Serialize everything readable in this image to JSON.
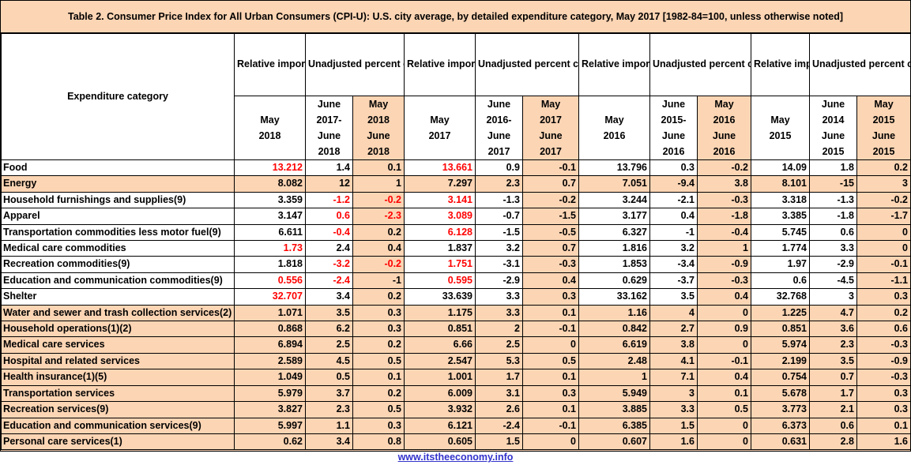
{
  "title": "Table 2. Consumer Price Index for All Urban Consumers (CPI-U): U.S. city average, by detailed expenditure category,  May 2017 [1982-84=100, unless otherwise noted]",
  "header": {
    "category": "Expenditure category",
    "relative_importance": "Relative importance",
    "unadjusted_change": "Unadjusted percent change",
    "groups": [
      {
        "ri_date": [
          "May",
          "2018"
        ],
        "c1": [
          "June",
          "2017-",
          "June",
          "2018"
        ],
        "c2": [
          "May",
          "2018",
          "June",
          "2018"
        ]
      },
      {
        "ri_date": [
          "May",
          "2017"
        ],
        "c1": [
          "June",
          "2016-",
          "June",
          "2017"
        ],
        "c2": [
          "May",
          "2017",
          "June",
          "2017"
        ]
      },
      {
        "ri_date": [
          "May",
          "2016"
        ],
        "c1": [
          "June",
          "2015-",
          "June",
          "2016"
        ],
        "c2": [
          "May",
          "2016",
          "June",
          "2016"
        ]
      },
      {
        "ri_date": [
          "May",
          "2015"
        ],
        "c1": [
          "June",
          "2014",
          "June",
          "2015"
        ],
        "c2": [
          "May",
          "2015",
          "June",
          "2015"
        ]
      }
    ]
  },
  "rows": [
    {
      "category": "Food",
      "style": "white",
      "values": [
        "13.212",
        "1.4",
        "0.1",
        "13.661",
        "0.9",
        "-0.1",
        "13.796",
        "0.3",
        "-0.2",
        "14.09",
        "1.8",
        "0.2"
      ],
      "red": [
        0,
        3
      ]
    },
    {
      "category": "Energy",
      "style": "tan",
      "values": [
        "8.082",
        "12",
        "1",
        "7.297",
        "2.3",
        "0.7",
        "7.051",
        "-9.4",
        "3.8",
        "8.101",
        "-15",
        "3"
      ],
      "red": []
    },
    {
      "category": "Household furnishings and supplies(9)",
      "style": "white",
      "values": [
        "3.359",
        "-1.2",
        "-0.2",
        "3.141",
        "-1.3",
        "-0.2",
        "3.244",
        "-2.1",
        "-0.3",
        "3.318",
        "-1.3",
        "-0.2"
      ],
      "red": [
        1,
        2,
        3
      ]
    },
    {
      "category": "Apparel",
      "style": "white",
      "values": [
        "3.147",
        "0.6",
        "-2.3",
        "3.089",
        "-0.7",
        "-1.5",
        "3.177",
        "0.4",
        "-1.8",
        "3.385",
        "-1.8",
        "-1.7"
      ],
      "red": [
        1,
        2,
        3
      ]
    },
    {
      "category": "Transportation commodities less motor fuel(9)",
      "style": "white",
      "values": [
        "6.611",
        "-0.4",
        "0.2",
        "6.128",
        "-1.5",
        "-0.5",
        "6.327",
        "-1",
        "-0.4",
        "5.745",
        "0.6",
        "0"
      ],
      "red": [
        1,
        3
      ]
    },
    {
      "category": "Medical care commodities",
      "style": "white",
      "values": [
        "1.73",
        "2.4",
        "0.4",
        "1.837",
        "3.2",
        "0.7",
        "1.816",
        "3.2",
        "1",
        "1.774",
        "3.3",
        "0"
      ],
      "red": [
        0
      ]
    },
    {
      "category": "Recreation commodities(9)",
      "style": "white",
      "values": [
        "1.818",
        "-3.2",
        "-0.2",
        "1.751",
        "-3.1",
        "-0.3",
        "1.853",
        "-3.4",
        "-0.9",
        "1.97",
        "-2.9",
        "-0.1"
      ],
      "red": [
        1,
        2,
        3
      ]
    },
    {
      "category": "Education and communication commodities(9)",
      "style": "white",
      "values": [
        "0.556",
        "-2.4",
        "-1",
        "0.595",
        "-2.9",
        "0.4",
        "0.629",
        "-3.7",
        "-0.3",
        "0.6",
        "-4.5",
        "-1.1"
      ],
      "red": [
        0,
        1,
        3
      ]
    },
    {
      "category": "Shelter",
      "style": "white",
      "values": [
        "32.707",
        "3.4",
        "0.2",
        "33.639",
        "3.3",
        "0.3",
        "33.162",
        "3.5",
        "0.4",
        "32.768",
        "3",
        "0.3"
      ],
      "red": [
        0
      ]
    },
    {
      "category": "Water and sewer and trash collection services(2)",
      "style": "tan",
      "values": [
        "1.071",
        "3.5",
        "0.3",
        "1.175",
        "3.3",
        "0.1",
        "1.16",
        "4",
        "0",
        "1.225",
        "4.7",
        "0.2"
      ],
      "red": []
    },
    {
      "category": "Household operations(1)(2)",
      "style": "tan",
      "values": [
        "0.868",
        "6.2",
        "0.3",
        "0.851",
        "2",
        "-0.1",
        "0.842",
        "2.7",
        "0.9",
        "0.851",
        "3.6",
        "0.6"
      ],
      "red": []
    },
    {
      "category": "Medical care services",
      "style": "tan",
      "values": [
        "6.894",
        "2.5",
        "0.2",
        "6.66",
        "2.5",
        "0",
        "6.619",
        "3.8",
        "0",
        "5.974",
        "2.3",
        "-0.3"
      ],
      "red": []
    },
    {
      "category": "Hospital and related services",
      "style": "tan",
      "values": [
        "2.589",
        "4.5",
        "0.5",
        "2.547",
        "5.3",
        "0.5",
        "2.48",
        "4.1",
        "-0.1",
        "2.199",
        "3.5",
        "-0.9"
      ],
      "red": []
    },
    {
      "category": "Health insurance(1)(5)",
      "style": "tan",
      "values": [
        "1.049",
        "0.5",
        "0.1",
        "1.001",
        "1.7",
        "0.1",
        "1",
        "7.1",
        "0.4",
        "0.754",
        "0.7",
        "-0.3"
      ],
      "red": []
    },
    {
      "category": "Transportation services",
      "style": "tan",
      "values": [
        "5.979",
        "3.7",
        "0.2",
        "6.009",
        "3.1",
        "0.3",
        "5.949",
        "3",
        "0.1",
        "5.678",
        "1.7",
        "0.3"
      ],
      "red": []
    },
    {
      "category": "Recreation services(9)",
      "style": "tan",
      "values": [
        "3.827",
        "2.3",
        "0.5",
        "3.932",
        "2.6",
        "0.1",
        "3.885",
        "3.3",
        "0.5",
        "3.773",
        "2.1",
        "0.3"
      ],
      "red": []
    },
    {
      "category": "Education and communication services(9)",
      "style": "tan",
      "values": [
        "5.997",
        "1.1",
        "0.3",
        "6.121",
        "-2.4",
        "-0.1",
        "6.385",
        "1.5",
        "0",
        "6.373",
        "0.6",
        "0.1"
      ],
      "red": []
    },
    {
      "category": "Personal care services(1)",
      "style": "tan",
      "values": [
        "0.62",
        "3.4",
        "0.8",
        "0.605",
        "1.5",
        "0",
        "0.607",
        "1.6",
        "0",
        "0.631",
        "2.8",
        "1.6"
      ],
      "red": []
    }
  ],
  "footer": {
    "link_text": "www.itstheeconomy.info"
  },
  "colors": {
    "tan": "#fcd5b4",
    "white": "#ffffff",
    "red": "#ff0000",
    "link": "#3333cc"
  }
}
